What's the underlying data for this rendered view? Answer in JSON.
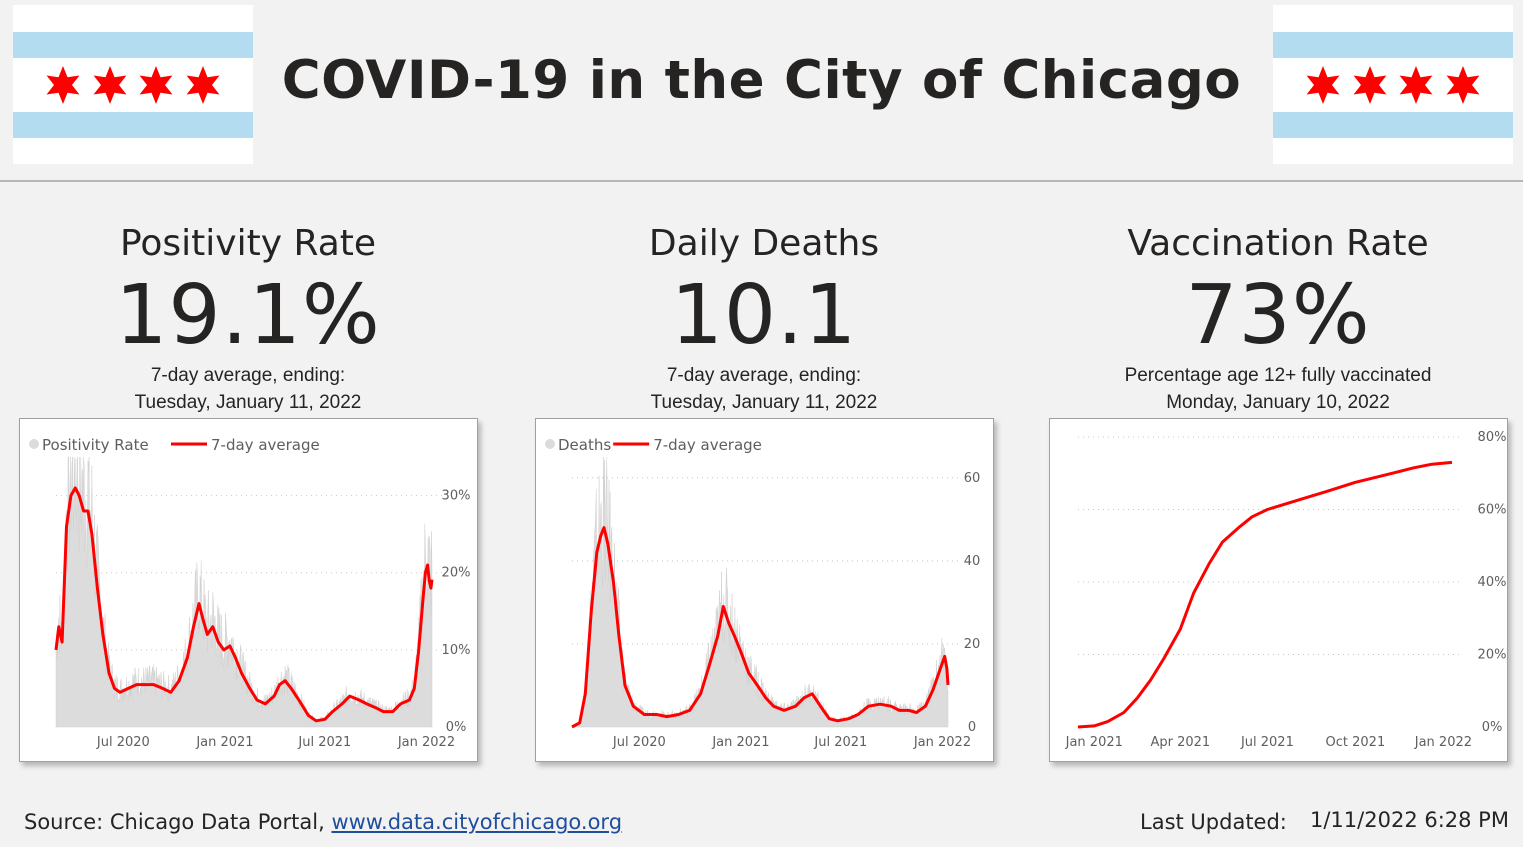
{
  "header": {
    "title": "COVID-19 in the City of Chicago"
  },
  "kpis": [
    {
      "label": "Positivity Rate",
      "value": "19.1%",
      "sub1": "7-day average, ending:",
      "sub2": "Tuesday, January 11, 2022"
    },
    {
      "label": "Daily Deaths",
      "value": "10.1",
      "sub1": "7-day average, ending:",
      "sub2": "Tuesday, January 11, 2022"
    },
    {
      "label": "Vaccination Rate",
      "value": "73%",
      "sub1": "Percentage age 12+ fully vaccinated",
      "sub2": "Monday, January 10, 2022"
    }
  ],
  "footer": {
    "source_label": "Source:  Chicago Data Portal, ",
    "source_link": "www.data.cityofchicago.org",
    "updated_label": "Last Updated:",
    "updated_value": "1/11/2022 6:28 PM"
  },
  "colors": {
    "accent": "#ff0000",
    "bars": "#dcdcdc",
    "flag_blue": "#b3dcf0",
    "flag_star": "#ff0000"
  },
  "chart_data": [
    {
      "type": "bar+line",
      "legend": [
        "Positivity Rate",
        "7-day average"
      ],
      "xticks": [
        "Jul 2020",
        "Jan 2021",
        "Jul 2021",
        "Jan 2022"
      ],
      "yticks": [
        "0%",
        "10%",
        "20%",
        "30%"
      ],
      "ylim": [
        0,
        35
      ],
      "x_range": [
        "2020-03-01",
        "2022-01-11"
      ],
      "series_avg": [
        [
          "2020-03-01",
          10
        ],
        [
          "2020-03-06",
          13
        ],
        [
          "2020-03-12",
          11
        ],
        [
          "2020-03-20",
          26
        ],
        [
          "2020-03-28",
          30
        ],
        [
          "2020-04-05",
          31
        ],
        [
          "2020-04-12",
          30
        ],
        [
          "2020-04-20",
          28
        ],
        [
          "2020-04-28",
          28
        ],
        [
          "2020-05-05",
          25
        ],
        [
          "2020-05-15",
          18
        ],
        [
          "2020-05-25",
          12
        ],
        [
          "2020-06-05",
          7
        ],
        [
          "2020-06-15",
          5
        ],
        [
          "2020-06-25",
          4.5
        ],
        [
          "2020-07-10",
          5
        ],
        [
          "2020-07-25",
          5.5
        ],
        [
          "2020-08-10",
          5.5
        ],
        [
          "2020-08-25",
          5.5
        ],
        [
          "2020-09-10",
          5
        ],
        [
          "2020-09-25",
          4.5
        ],
        [
          "2020-10-10",
          6
        ],
        [
          "2020-10-25",
          9
        ],
        [
          "2020-11-05",
          13
        ],
        [
          "2020-11-15",
          16
        ],
        [
          "2020-11-22",
          14
        ],
        [
          "2020-11-30",
          12
        ],
        [
          "2020-12-10",
          13
        ],
        [
          "2020-12-20",
          11
        ],
        [
          "2020-12-30",
          10
        ],
        [
          "2021-01-10",
          10.5
        ],
        [
          "2021-01-20",
          9
        ],
        [
          "2021-01-31",
          7
        ],
        [
          "2021-02-15",
          5
        ],
        [
          "2021-02-28",
          3.5
        ],
        [
          "2021-03-15",
          3
        ],
        [
          "2021-03-31",
          4
        ],
        [
          "2021-04-10",
          5.5
        ],
        [
          "2021-04-20",
          6
        ],
        [
          "2021-05-01",
          5
        ],
        [
          "2021-05-15",
          3.5
        ],
        [
          "2021-06-01",
          1.5
        ],
        [
          "2021-06-15",
          0.8
        ],
        [
          "2021-07-01",
          1
        ],
        [
          "2021-07-15",
          2
        ],
        [
          "2021-08-01",
          3
        ],
        [
          "2021-08-15",
          4
        ],
        [
          "2021-09-01",
          3.5
        ],
        [
          "2021-09-15",
          3
        ],
        [
          "2021-10-01",
          2.5
        ],
        [
          "2021-10-15",
          2
        ],
        [
          "2021-11-01",
          2
        ],
        [
          "2021-11-15",
          3
        ],
        [
          "2021-12-01",
          3.5
        ],
        [
          "2021-12-10",
          5
        ],
        [
          "2021-12-18",
          10
        ],
        [
          "2021-12-25",
          16
        ],
        [
          "2021-12-30",
          20
        ],
        [
          "2022-01-03",
          21
        ],
        [
          "2022-01-06",
          19
        ],
        [
          "2022-01-09",
          18
        ],
        [
          "2022-01-11",
          19.1
        ]
      ],
      "bar_amp": 1.3
    },
    {
      "type": "bar+line",
      "legend": [
        "Deaths",
        "7-day average"
      ],
      "xticks": [
        "Jul 2020",
        "Jan 2021",
        "Jul 2021",
        "Jan 2022"
      ],
      "yticks": [
        "0",
        "20",
        "40",
        "60"
      ],
      "ylim": [
        0,
        65
      ],
      "x_range": [
        "2020-03-01",
        "2022-01-11"
      ],
      "series_avg": [
        [
          "2020-03-01",
          0
        ],
        [
          "2020-03-15",
          1
        ],
        [
          "2020-03-25",
          8
        ],
        [
          "2020-04-05",
          28
        ],
        [
          "2020-04-15",
          42
        ],
        [
          "2020-04-22",
          46
        ],
        [
          "2020-04-28",
          48
        ],
        [
          "2020-05-05",
          44
        ],
        [
          "2020-05-15",
          35
        ],
        [
          "2020-05-25",
          22
        ],
        [
          "2020-06-05",
          10
        ],
        [
          "2020-06-20",
          5
        ],
        [
          "2020-07-10",
          3
        ],
        [
          "2020-08-01",
          3
        ],
        [
          "2020-08-20",
          2.5
        ],
        [
          "2020-09-10",
          3
        ],
        [
          "2020-09-30",
          4
        ],
        [
          "2020-10-20",
          8
        ],
        [
          "2020-11-05",
          15
        ],
        [
          "2020-11-20",
          22
        ],
        [
          "2020-11-30",
          29
        ],
        [
          "2020-12-10",
          25
        ],
        [
          "2020-12-20",
          22
        ],
        [
          "2021-01-01",
          18
        ],
        [
          "2021-01-15",
          13
        ],
        [
          "2021-01-31",
          10
        ],
        [
          "2021-02-15",
          7
        ],
        [
          "2021-03-01",
          5
        ],
        [
          "2021-03-20",
          4
        ],
        [
          "2021-04-10",
          5
        ],
        [
          "2021-04-25",
          7
        ],
        [
          "2021-05-10",
          8
        ],
        [
          "2021-05-25",
          5
        ],
        [
          "2021-06-10",
          2
        ],
        [
          "2021-06-25",
          1.5
        ],
        [
          "2021-07-15",
          2
        ],
        [
          "2021-08-01",
          3
        ],
        [
          "2021-08-20",
          5
        ],
        [
          "2021-09-10",
          5.5
        ],
        [
          "2021-09-30",
          5
        ],
        [
          "2021-10-15",
          4
        ],
        [
          "2021-11-01",
          4
        ],
        [
          "2021-11-15",
          3.5
        ],
        [
          "2021-12-01",
          5
        ],
        [
          "2021-12-15",
          9
        ],
        [
          "2021-12-28",
          14
        ],
        [
          "2022-01-05",
          17
        ],
        [
          "2022-01-09",
          14
        ],
        [
          "2022-01-11",
          10.1
        ]
      ],
      "bar_amp": 1.25
    },
    {
      "type": "line",
      "legend": [],
      "xticks": [
        "Jan 2021",
        "Apr 2021",
        "Jul 2021",
        "Oct 2021",
        "Jan 2022"
      ],
      "yticks": [
        "0%",
        "20%",
        "40%",
        "60%",
        "80%"
      ],
      "ylim": [
        0,
        80
      ],
      "x_range": [
        "2020-12-15",
        "2022-01-10"
      ],
      "series": [
        [
          "2020-12-15",
          0
        ],
        [
          "2021-01-01",
          0.3
        ],
        [
          "2021-01-15",
          1.5
        ],
        [
          "2021-02-01",
          4
        ],
        [
          "2021-02-15",
          8
        ],
        [
          "2021-03-01",
          13
        ],
        [
          "2021-03-15",
          19
        ],
        [
          "2021-04-01",
          27
        ],
        [
          "2021-04-15",
          37
        ],
        [
          "2021-05-01",
          45
        ],
        [
          "2021-05-15",
          51
        ],
        [
          "2021-06-01",
          55
        ],
        [
          "2021-06-15",
          58
        ],
        [
          "2021-07-01",
          60
        ],
        [
          "2021-08-01",
          62.5
        ],
        [
          "2021-09-01",
          65
        ],
        [
          "2021-10-01",
          67.5
        ],
        [
          "2021-11-01",
          69.5
        ],
        [
          "2021-12-01",
          71.5
        ],
        [
          "2021-12-20",
          72.5
        ],
        [
          "2022-01-10",
          73
        ]
      ]
    }
  ]
}
